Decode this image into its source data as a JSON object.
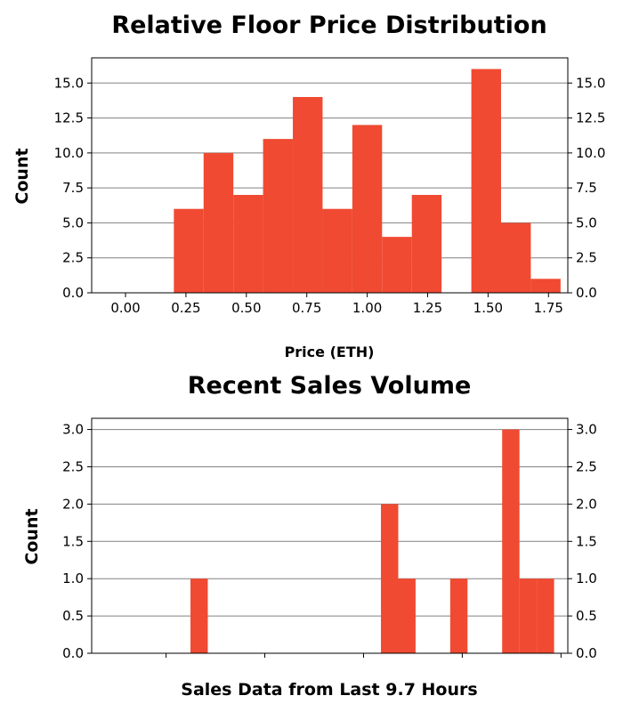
{
  "chart_data": [
    {
      "type": "bar",
      "title": "Relative Floor Price Distribution",
      "xlabel": "Price (ETH)",
      "ylabel": "Count",
      "bar_color": "#f04a32",
      "grid_color": "#808080",
      "grid": "horizontal",
      "bin_edges": [
        0.2,
        0.3231,
        0.4462,
        0.5692,
        0.6923,
        0.8154,
        0.9385,
        1.0615,
        1.1846,
        1.3077,
        1.4308,
        1.5538,
        1.6769,
        1.8
      ],
      "values": [
        6,
        10,
        7,
        11,
        14,
        6,
        12,
        4,
        7,
        0,
        16,
        5,
        1
      ],
      "xlim": [
        -0.14,
        1.83
      ],
      "ylim": [
        0,
        16.8
      ],
      "xticks": [
        {
          "v": 0.0,
          "label": "0.00"
        },
        {
          "v": 0.25,
          "label": "0.25"
        },
        {
          "v": 0.5,
          "label": "0.50"
        },
        {
          "v": 0.75,
          "label": "0.75"
        },
        {
          "v": 1.0,
          "label": "1.00"
        },
        {
          "v": 1.25,
          "label": "1.25"
        },
        {
          "v": 1.5,
          "label": "1.50"
        },
        {
          "v": 1.75,
          "label": "1.75"
        }
      ],
      "yticks": [
        {
          "v": 0.0,
          "label": "0.0"
        },
        {
          "v": 2.5,
          "label": "2.5"
        },
        {
          "v": 5.0,
          "label": "5.0"
        },
        {
          "v": 7.5,
          "label": "7.5"
        },
        {
          "v": 10.0,
          "label": "10.0"
        },
        {
          "v": 12.5,
          "label": "12.5"
        },
        {
          "v": 15.0,
          "label": "15.0"
        }
      ],
      "right_axis_labels": true
    },
    {
      "type": "bar",
      "title": "Recent Sales Volume",
      "xlabel": "Sales Data from Last 9.7 Hours",
      "ylabel": "Count",
      "bar_color": "#f04a32",
      "grid_color": "#808080",
      "grid": "horizontal",
      "bin_edges": [
        0.5707,
        0.6707,
        0.7707,
        0.8707,
        0.9707,
        1.0707,
        1.1707,
        1.2707,
        1.3707,
        1.4707,
        1.5707,
        1.6707,
        1.7707,
        1.8707,
        1.9707,
        2.0707,
        2.1707,
        2.2707,
        2.3707,
        2.4707,
        2.5707,
        2.6707,
        2.7707
      ],
      "values": [
        1,
        0,
        0,
        0,
        0,
        0,
        0,
        0,
        0,
        0,
        0,
        2,
        1,
        0,
        0,
        1,
        0,
        0,
        3,
        1,
        1,
        0
      ],
      "xlim": [
        0,
        2.75
      ],
      "ylim": [
        0,
        3.15
      ],
      "xticks": [
        {
          "v": 0.4298,
          "label": ""
        },
        {
          "v": 1.0,
          "label": ""
        },
        {
          "v": 1.5702,
          "label": ""
        },
        {
          "v": 2.1404,
          "label": ""
        },
        {
          "v": 2.7106,
          "label": ""
        }
      ],
      "yticks": [
        {
          "v": 0.0,
          "label": "0.0"
        },
        {
          "v": 0.5,
          "label": "0.5"
        },
        {
          "v": 1.0,
          "label": "1.0"
        },
        {
          "v": 1.5,
          "label": "1.5"
        },
        {
          "v": 2.0,
          "label": "2.0"
        },
        {
          "v": 2.5,
          "label": "2.5"
        },
        {
          "v": 3.0,
          "label": "3.0"
        }
      ],
      "right_axis_labels": true
    }
  ]
}
